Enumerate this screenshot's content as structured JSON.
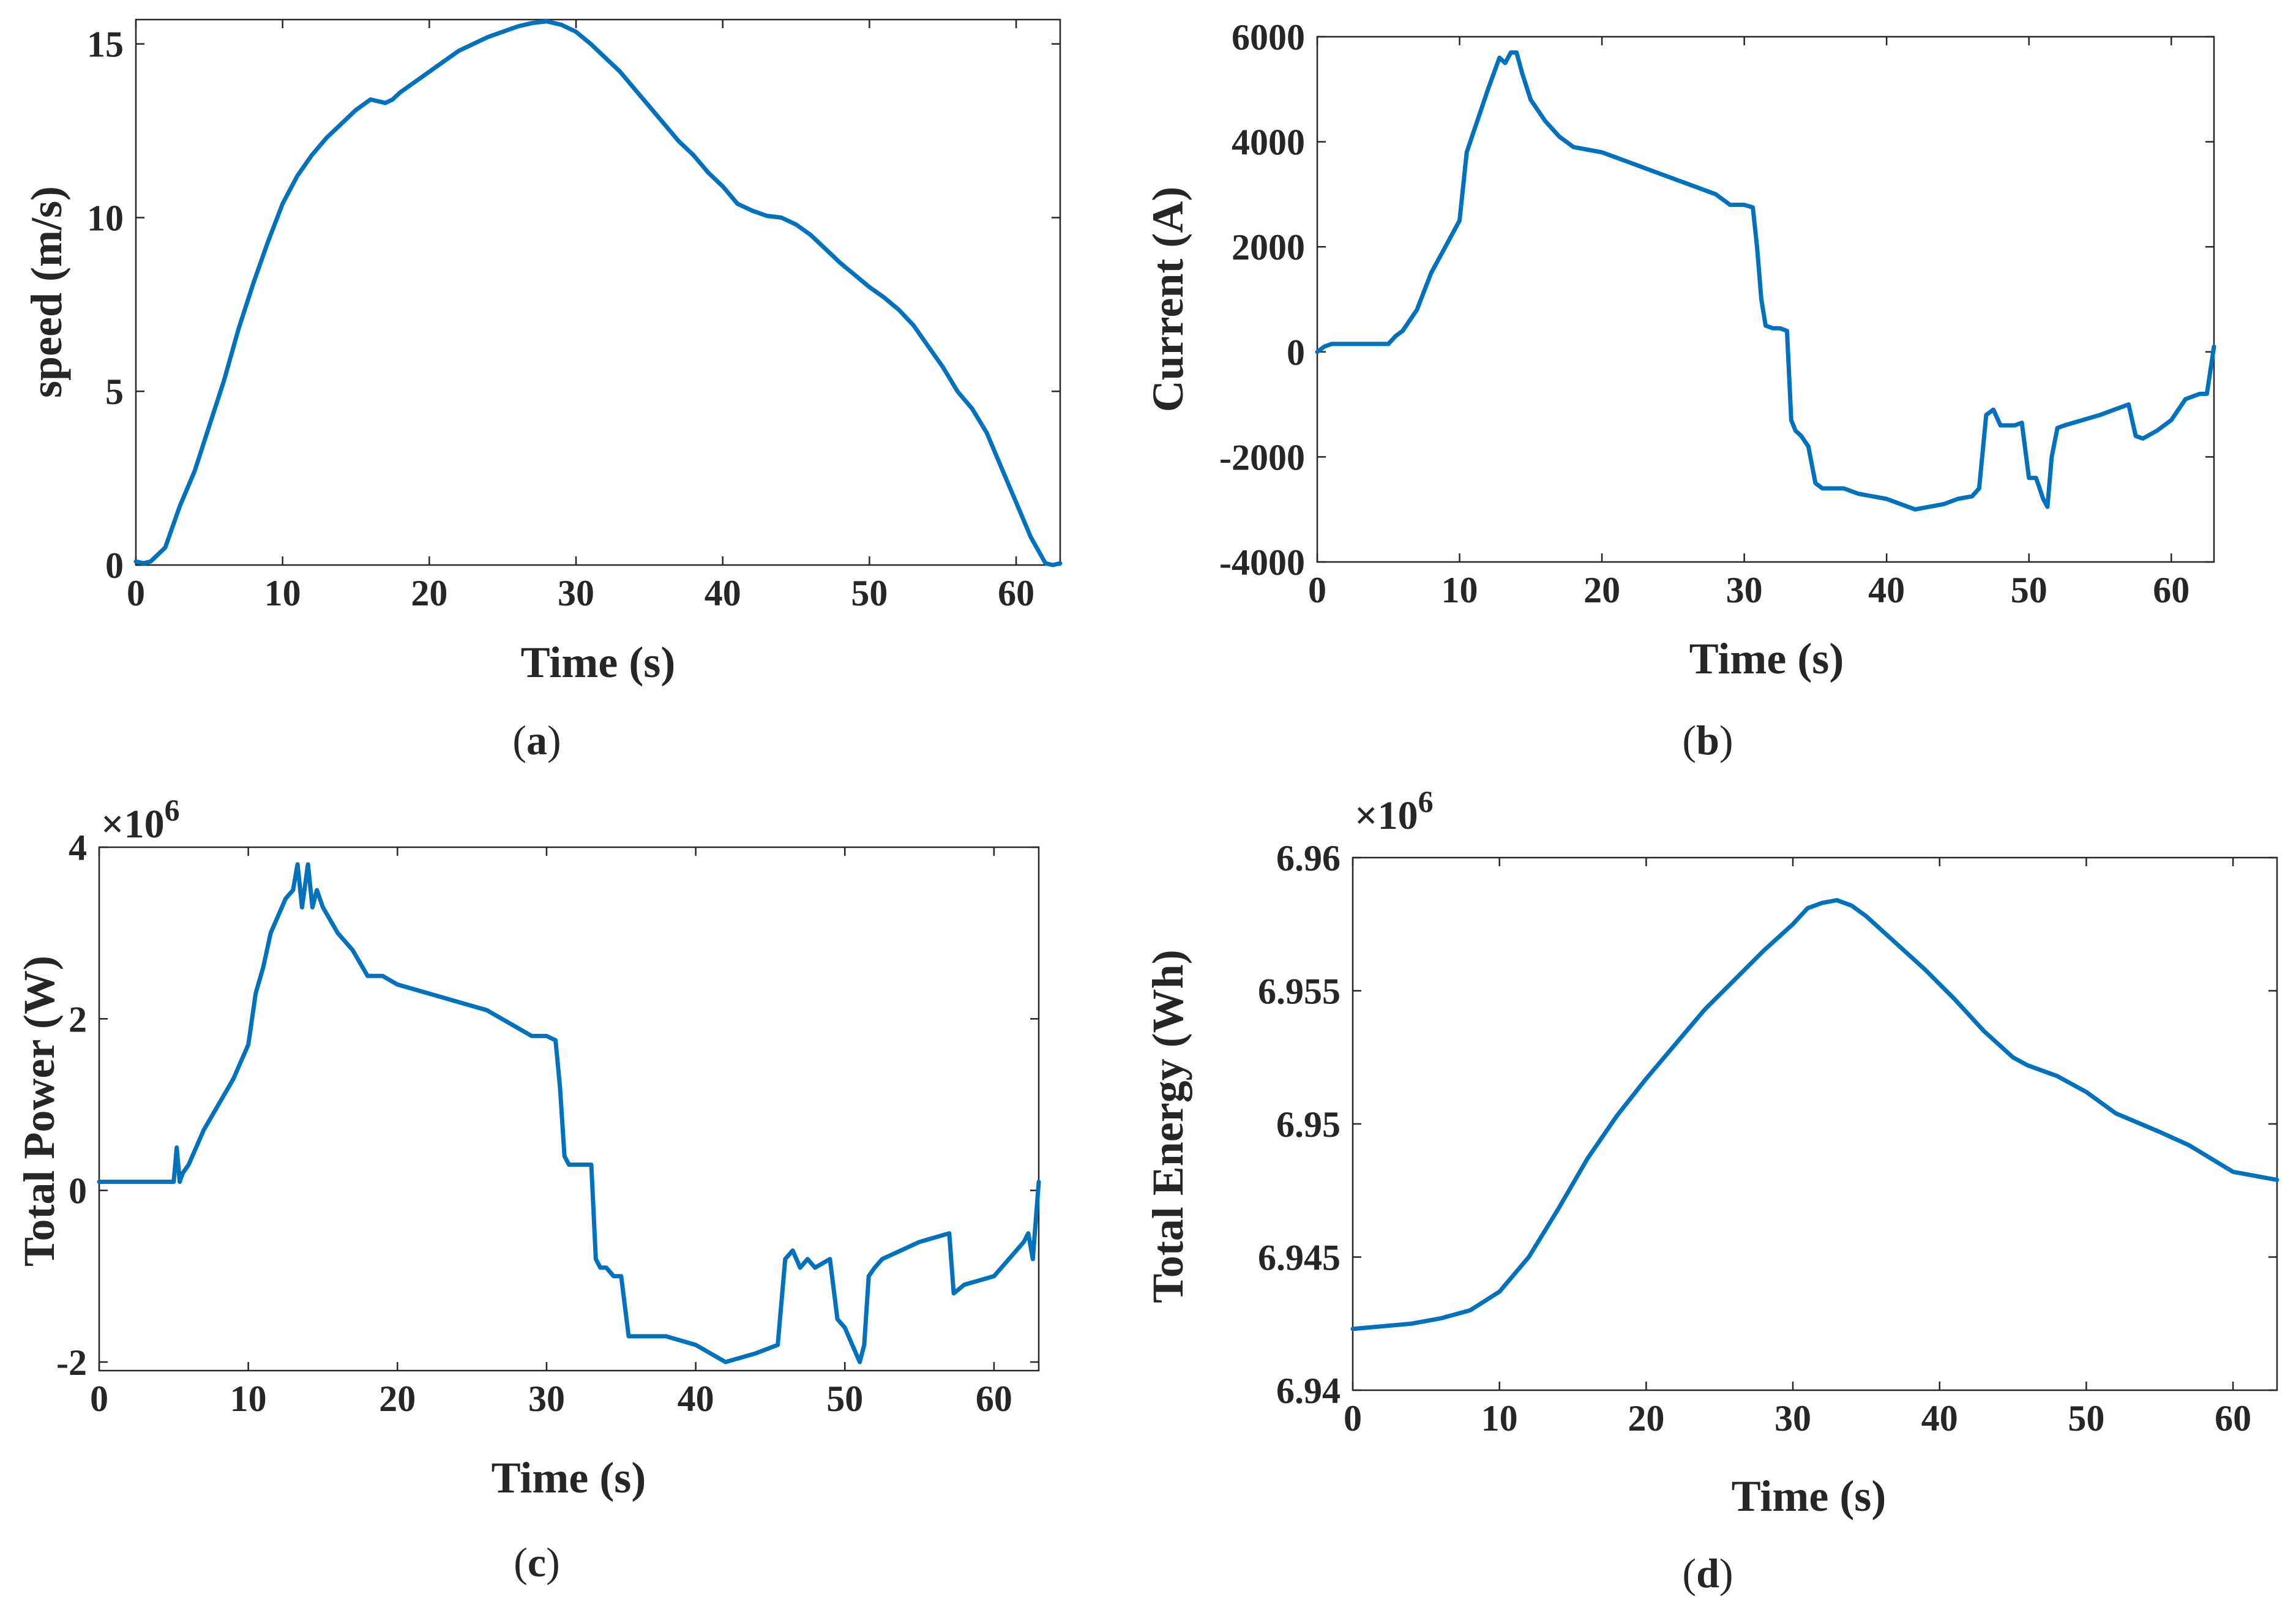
{
  "colors": {
    "line": "#0072BD",
    "axis": "#262626"
  },
  "chart_data": [
    {
      "id": "a",
      "type": "line",
      "caption": "a",
      "xlabel": "Time (s)",
      "ylabel": "speed (m/s)",
      "exponent": "",
      "xlim": [
        0,
        63
      ],
      "ylim": [
        0,
        15.7
      ],
      "xticks": [
        0,
        10,
        20,
        30,
        40,
        50,
        60
      ],
      "yticks": [
        0,
        5,
        10,
        15
      ],
      "ytick_labels": [
        "0",
        "5",
        "10",
        "15"
      ],
      "series": [
        {
          "name": "speed",
          "x": [
            0,
            0.5,
            1,
            2,
            3,
            4,
            5,
            6,
            7,
            8,
            9,
            10,
            11,
            12,
            13,
            14,
            15,
            16,
            16.5,
            17,
            17.5,
            18,
            19,
            20,
            21,
            22,
            23,
            24,
            25,
            26,
            27,
            28,
            29,
            30,
            31,
            32,
            33,
            34,
            35,
            36,
            37,
            38,
            39,
            40,
            41,
            42,
            43,
            44,
            45,
            46,
            47,
            48,
            49,
            50,
            51,
            52,
            53,
            54,
            55,
            56,
            57,
            58,
            59,
            60,
            61,
            62,
            62.5,
            63
          ],
          "y": [
            0.1,
            0.05,
            0.1,
            0.5,
            1.7,
            2.7,
            4.0,
            5.3,
            6.8,
            8.1,
            9.3,
            10.4,
            11.2,
            11.8,
            12.3,
            12.7,
            13.1,
            13.4,
            13.35,
            13.3,
            13.4,
            13.6,
            13.9,
            14.2,
            14.5,
            14.8,
            15.0,
            15.2,
            15.35,
            15.5,
            15.6,
            15.65,
            15.55,
            15.35,
            15.0,
            14.6,
            14.2,
            13.7,
            13.2,
            12.7,
            12.2,
            11.8,
            11.3,
            10.9,
            10.4,
            10.2,
            10.05,
            10.0,
            9.8,
            9.5,
            9.1,
            8.7,
            8.35,
            8.0,
            7.7,
            7.35,
            6.9,
            6.3,
            5.7,
            5.0,
            4.5,
            3.8,
            2.8,
            1.8,
            0.8,
            0.05,
            0.0,
            0.05
          ]
        }
      ]
    },
    {
      "id": "b",
      "type": "line",
      "caption": "b",
      "xlabel": "Time (s)",
      "ylabel": "Current (A)",
      "exponent": "",
      "xlim": [
        0,
        63
      ],
      "ylim": [
        -4000,
        6000
      ],
      "xticks": [
        0,
        10,
        20,
        30,
        40,
        50,
        60
      ],
      "yticks": [
        -4000,
        -2000,
        0,
        2000,
        4000,
        6000
      ],
      "ytick_labels": [
        "-4000",
        "-2000",
        "0",
        "2000",
        "4000",
        "6000"
      ],
      "series": [
        {
          "name": "current",
          "x": [
            0,
            0.5,
            1,
            2,
            3,
            4,
            5,
            5.5,
            6,
            7,
            8,
            9,
            10,
            10.5,
            11,
            12,
            12.8,
            13.2,
            13.6,
            14,
            14.4,
            15,
            16,
            17,
            18,
            19,
            20,
            21,
            22,
            24,
            26,
            28,
            29,
            30,
            30.6,
            30.9,
            31.2,
            31.5,
            32,
            32.5,
            33,
            33.3,
            33.6,
            34,
            34.5,
            35,
            35.5,
            36,
            37,
            38,
            40,
            42,
            44,
            45,
            46,
            46.5,
            47,
            47.5,
            48,
            49,
            49.5,
            50,
            50.5,
            51,
            51.3,
            51.6,
            52,
            52.5,
            55,
            57,
            57.5,
            58,
            59,
            60,
            61,
            62,
            62.5,
            63
          ],
          "y": [
            0,
            100,
            150,
            150,
            150,
            150,
            150,
            300,
            400,
            800,
            1500,
            2000,
            2500,
            3800,
            4200,
            5000,
            5600,
            5500,
            5700,
            5700,
            5300,
            4800,
            4400,
            4100,
            3900,
            3850,
            3800,
            3700,
            3600,
            3400,
            3200,
            3000,
            2800,
            2800,
            2750,
            2000,
            1000,
            500,
            450,
            450,
            400,
            -1300,
            -1500,
            -1600,
            -1800,
            -2500,
            -2600,
            -2600,
            -2600,
            -2700,
            -2800,
            -3000,
            -2900,
            -2800,
            -2750,
            -2600,
            -1200,
            -1100,
            -1400,
            -1400,
            -1350,
            -2400,
            -2400,
            -2800,
            -2950,
            -2000,
            -1450,
            -1400,
            -1200,
            -1000,
            -1600,
            -1650,
            -1500,
            -1300,
            -900,
            -800,
            -800,
            100
          ]
        }
      ]
    },
    {
      "id": "c",
      "type": "line",
      "caption": "c",
      "xlabel": "Time (s)",
      "ylabel": "Total Power (W)",
      "exponent": "×10^6",
      "exponent_base": "×10",
      "exponent_power": "6",
      "xlim": [
        0,
        63
      ],
      "ylim": [
        -2.1,
        4.0
      ],
      "xticks": [
        0,
        10,
        20,
        30,
        40,
        50,
        60
      ],
      "yticks": [
        -2,
        0,
        2,
        4
      ],
      "ytick_labels": [
        "-2",
        "0",
        "2",
        "4"
      ],
      "series": [
        {
          "name": "power",
          "x": [
            0,
            1,
            2,
            3,
            4,
            5,
            5.2,
            5.4,
            5.6,
            6,
            7,
            8,
            9,
            9.5,
            10,
            10.5,
            11,
            11.5,
            12,
            12.5,
            13,
            13.3,
            13.6,
            14,
            14.3,
            14.6,
            15,
            16,
            17,
            18,
            19,
            20,
            22,
            24,
            26,
            28,
            29,
            30,
            30.6,
            30.9,
            31.2,
            31.5,
            32,
            32.5,
            33,
            33.3,
            33.6,
            34,
            34.5,
            35,
            35.5,
            36,
            38,
            40,
            42,
            44,
            45.5,
            46,
            46.5,
            47,
            47.5,
            48,
            49,
            49.5,
            50,
            50.5,
            51,
            51.3,
            51.6,
            52,
            52.5,
            55,
            57,
            57.3,
            58,
            60,
            61,
            62,
            62.3,
            62.6,
            63
          ],
          "y": [
            0.1,
            0.1,
            0.1,
            0.1,
            0.1,
            0.1,
            0.5,
            0.1,
            0.2,
            0.3,
            0.7,
            1.0,
            1.3,
            1.5,
            1.7,
            2.3,
            2.6,
            3.0,
            3.2,
            3.4,
            3.5,
            3.8,
            3.3,
            3.8,
            3.3,
            3.5,
            3.3,
            3.0,
            2.8,
            2.5,
            2.5,
            2.4,
            2.3,
            2.2,
            2.1,
            1.9,
            1.8,
            1.8,
            1.75,
            1.2,
            0.4,
            0.3,
            0.3,
            0.3,
            0.3,
            -0.8,
            -0.9,
            -0.9,
            -1.0,
            -1.0,
            -1.7,
            -1.7,
            -1.7,
            -1.8,
            -2.0,
            -1.9,
            -1.8,
            -0.8,
            -0.7,
            -0.9,
            -0.8,
            -0.9,
            -0.8,
            -1.5,
            -1.6,
            -1.8,
            -2.0,
            -1.8,
            -1.0,
            -0.9,
            -0.8,
            -0.6,
            -0.5,
            -1.2,
            -1.1,
            -1.0,
            -0.8,
            -0.6,
            -0.5,
            -0.8,
            0.1
          ]
        }
      ]
    },
    {
      "id": "d",
      "type": "line",
      "caption": "d",
      "xlabel": "Time (s)",
      "ylabel": "Total Energy (Wh)",
      "exponent": "×10^6",
      "exponent_base": "×10",
      "exponent_power": "6",
      "xlim": [
        0,
        63
      ],
      "ylim": [
        6.94,
        6.96
      ],
      "xticks": [
        0,
        10,
        20,
        30,
        40,
        50,
        60
      ],
      "yticks": [
        6.94,
        6.945,
        6.95,
        6.955,
        6.96
      ],
      "ytick_labels": [
        "6.94",
        "6.945",
        "6.95",
        "6.955",
        "6.96"
      ],
      "series": [
        {
          "name": "energy",
          "x": [
            0,
            2,
            4,
            6,
            8,
            10,
            12,
            14,
            16,
            18,
            20,
            22,
            24,
            26,
            28,
            30,
            31,
            32,
            33,
            34,
            35,
            37,
            39,
            41,
            43,
            45,
            46,
            48,
            50,
            52,
            55,
            57,
            60,
            63
          ],
          "y": [
            6.9423,
            6.9424,
            6.9425,
            6.9427,
            6.943,
            6.9437,
            6.945,
            6.9468,
            6.9487,
            6.9503,
            6.9517,
            6.953,
            6.9543,
            6.9554,
            6.9565,
            6.9575,
            6.9581,
            6.9583,
            6.9584,
            6.9582,
            6.9578,
            6.9568,
            6.9558,
            6.9547,
            6.9535,
            6.9525,
            6.9522,
            6.9518,
            6.9512,
            6.9504,
            6.9497,
            6.9492,
            6.9482,
            6.9479
          ]
        }
      ]
    }
  ]
}
